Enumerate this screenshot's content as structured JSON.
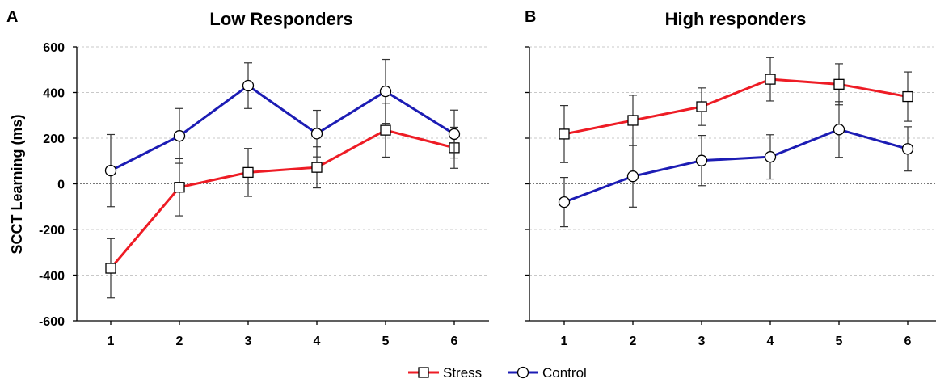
{
  "legend": {
    "stress_label": "Stress",
    "control_label": "Control"
  },
  "colors": {
    "stress": "#ee1c25",
    "control": "#1c1cb4"
  },
  "chart_data": [
    {
      "type": "line",
      "panel_letter": "A",
      "title": "Low Responders",
      "ylabel": "SCCT Learning (ms)",
      "xlabel": "",
      "x": [
        1,
        2,
        3,
        4,
        5,
        6
      ],
      "x_tick_labels": [
        "1",
        "2",
        "3",
        "4",
        "5",
        "6"
      ],
      "y_ticks": [
        -600,
        -400,
        -200,
        0,
        200,
        400,
        600
      ],
      "y_tick_labels": [
        "-600",
        "-400",
        "-200",
        "0",
        "200",
        "400",
        "600"
      ],
      "ylim": [
        -600,
        600
      ],
      "grid": true,
      "series": [
        {
          "name": "Stress",
          "marker": "square",
          "values": [
            -370,
            -15,
            50,
            72,
            235,
            158
          ],
          "errors": [
            130,
            125,
            105,
            90,
            118,
            90
          ]
        },
        {
          "name": "Control",
          "marker": "circle",
          "values": [
            58,
            210,
            430,
            220,
            405,
            218
          ],
          "errors": [
            158,
            120,
            100,
            102,
            140,
            105
          ]
        }
      ]
    },
    {
      "type": "line",
      "panel_letter": "B",
      "title": "High responders",
      "ylabel": "",
      "xlabel": "",
      "x": [
        1,
        2,
        3,
        4,
        5,
        6
      ],
      "x_tick_labels": [
        "1",
        "2",
        "3",
        "4",
        "5",
        "6"
      ],
      "y_ticks": [
        -600,
        -400,
        -200,
        0,
        200,
        400,
        600
      ],
      "y_tick_labels": [
        "",
        "",
        "",
        "",
        "",
        "",
        ""
      ],
      "ylim": [
        -600,
        600
      ],
      "grid": true,
      "series": [
        {
          "name": "Stress",
          "marker": "square",
          "values": [
            218,
            278,
            338,
            458,
            436,
            382
          ],
          "errors": [
            125,
            110,
            82,
            95,
            90,
            108
          ]
        },
        {
          "name": "Control",
          "marker": "circle",
          "values": [
            -80,
            33,
            102,
            118,
            238,
            153
          ],
          "errors": [
            108,
            135,
            110,
            97,
            122,
            97
          ]
        }
      ]
    }
  ]
}
